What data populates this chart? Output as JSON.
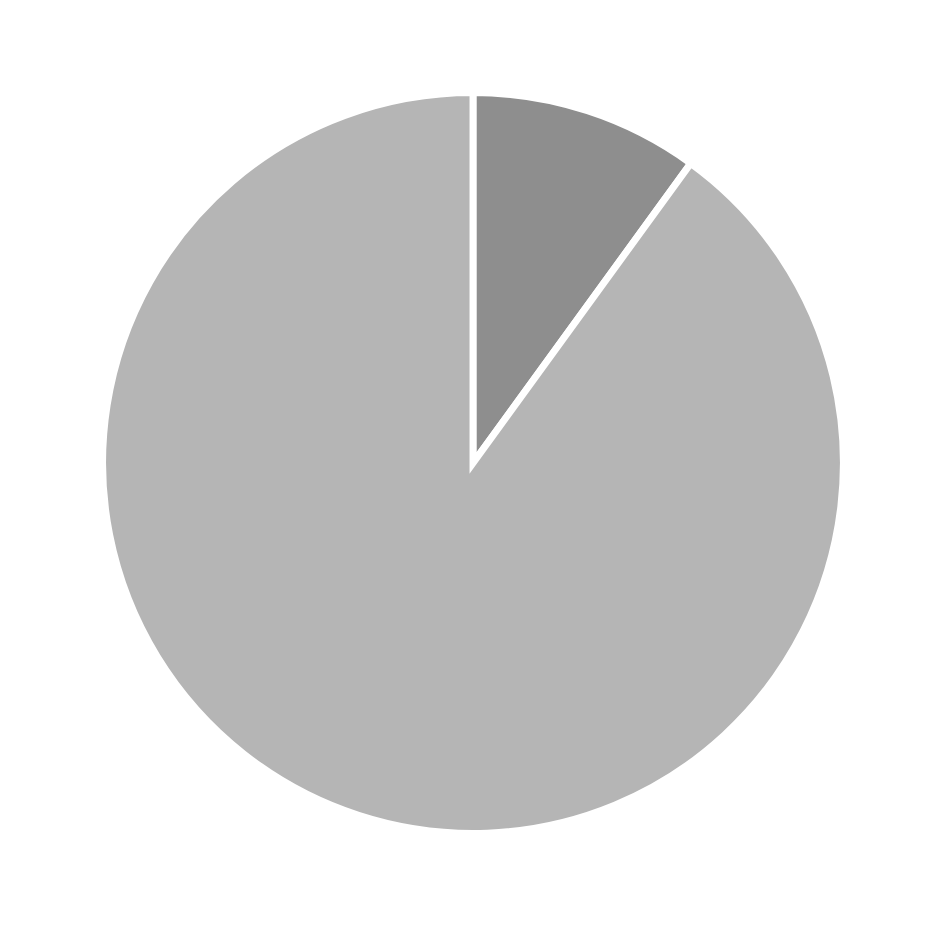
{
  "chart_data": {
    "type": "pie",
    "categories": [
      null,
      null
    ],
    "values": [
      10,
      90
    ],
    "colors": [
      "#8e8e8e",
      "#b5b5b5"
    ]
  }
}
